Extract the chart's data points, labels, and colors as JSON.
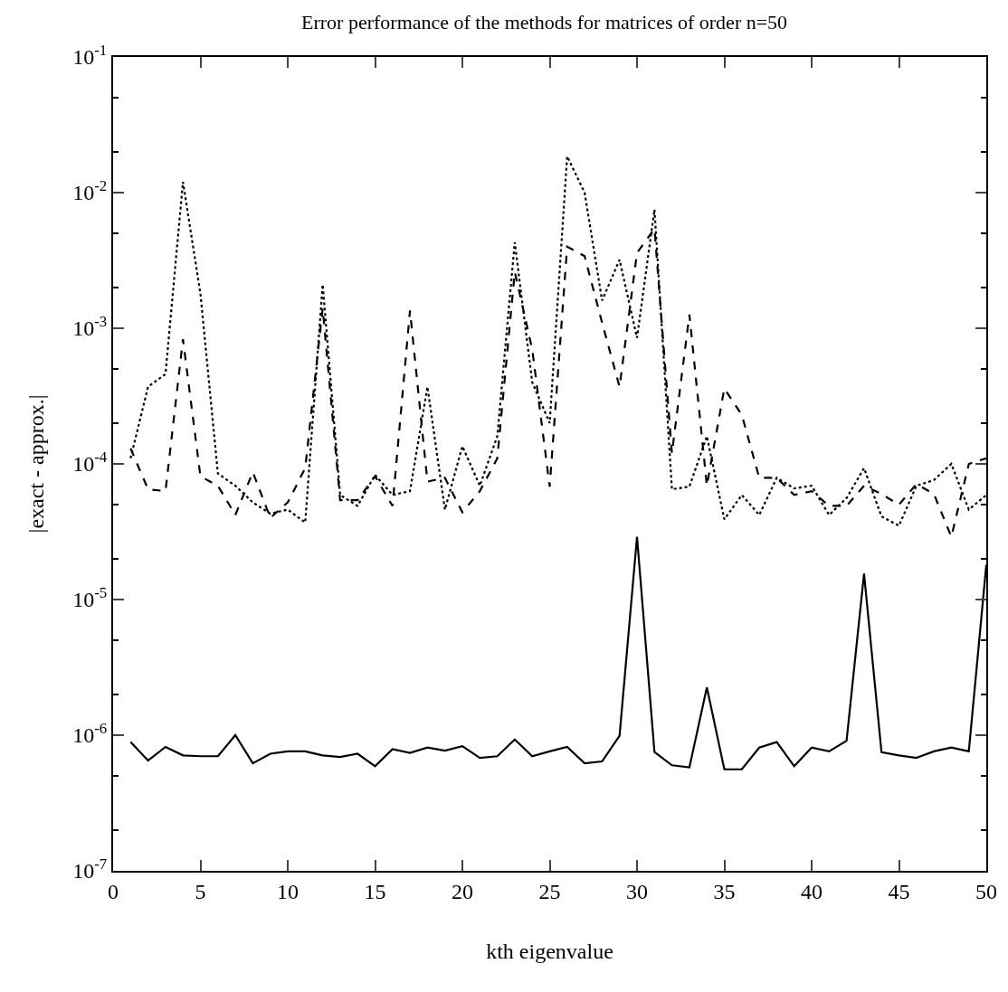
{
  "chart_data": {
    "type": "line",
    "title": "Error performance of the methods for matrices of order n=50",
    "xlabel": "kth eigenvalue",
    "ylabel": "|exact - approx.|",
    "log": "y",
    "x": [
      1,
      2,
      3,
      4,
      5,
      6,
      7,
      8,
      9,
      10,
      11,
      12,
      13,
      14,
      15,
      16,
      17,
      18,
      19,
      20,
      21,
      22,
      23,
      24,
      25,
      26,
      27,
      28,
      29,
      30,
      31,
      32,
      33,
      34,
      35,
      36,
      37,
      38,
      39,
      40,
      41,
      42,
      43,
      44,
      45,
      46,
      47,
      48,
      49,
      50
    ],
    "xlim": [
      0,
      50
    ],
    "xticks": [
      0,
      5,
      10,
      15,
      20,
      25,
      30,
      35,
      40,
      45,
      50
    ],
    "ylim": [
      1e-07,
      0.1
    ],
    "yticks": [
      {
        "value": 1e-07,
        "label": "10$^{-7}$"
      },
      {
        "value": 1e-06,
        "label": "10$^{-6}$"
      },
      {
        "value": 1e-05,
        "label": "10$^{-5}$"
      },
      {
        "value": 0.0001,
        "label": "10$^{-4}$"
      },
      {
        "value": 0.001,
        "label": "10$^{-3}$"
      },
      {
        "value": 0.01,
        "label": "10$^{-2}$"
      },
      {
        "value": 0.1,
        "label": "10$^{-1}$"
      }
    ],
    "grid": false,
    "series": [
      {
        "color": "#000000",
        "line_style": "dotted",
        "values": [
          0.00011,
          0.00037,
          0.00046,
          0.012,
          0.0018,
          8.5e-05,
          6.9e-05,
          5.2e-05,
          4.3e-05,
          4.6e-05,
          3.7e-05,
          0.0021,
          5.9e-05,
          4.9e-05,
          8.3e-05,
          5.9e-05,
          6.3e-05,
          0.00037,
          4.6e-05,
          0.000135,
          6.9e-05,
          0.00016,
          0.0043,
          0.0004,
          0.0002,
          0.0185,
          0.01,
          0.0016,
          0.0032,
          0.00085,
          0.0075,
          6.5e-05,
          6.8e-05,
          0.00016,
          3.9e-05,
          5.9e-05,
          4.2e-05,
          7.9e-05,
          6.6e-05,
          6.9e-05,
          4.2e-05,
          5.6e-05,
          9.3e-05,
          4.1e-05,
          3.5e-05,
          6.9e-05,
          7.6e-05,
          0.0001,
          4.6e-05,
          5.9e-05
        ]
      },
      {
        "color": "#000000",
        "line_style": "dashed",
        "values": [
          0.00013,
          6.5e-05,
          6.3e-05,
          0.00083,
          8.1e-05,
          6.9e-05,
          4.2e-05,
          8.7e-05,
          4e-05,
          5.2e-05,
          9.3e-05,
          0.0014,
          5.4e-05,
          5.4e-05,
          8.1e-05,
          4.9e-05,
          0.00135,
          7.4e-05,
          7.9e-05,
          4.4e-05,
          6.3e-05,
          0.00011,
          0.0026,
          0.0007,
          6.8e-05,
          0.004,
          0.0034,
          0.0011,
          0.00037,
          0.0036,
          0.0054,
          0.00012,
          0.00126,
          6.9e-05,
          0.00036,
          0.00023,
          7.9e-05,
          7.9e-05,
          5.9e-05,
          6.3e-05,
          4.9e-05,
          4.9e-05,
          6.9e-05,
          6e-05,
          5e-05,
          7.1e-05,
          6e-05,
          2.9e-05,
          0.0001,
          0.00011
        ]
      },
      {
        "color": "#000000",
        "line_style": "solid",
        "values": [
          8.9e-07,
          6.5e-07,
          8.2e-07,
          7.1e-07,
          7e-07,
          7e-07,
          1e-06,
          6.2e-07,
          7.3e-07,
          7.6e-07,
          7.6e-07,
          7.1e-07,
          6.9e-07,
          7.3e-07,
          5.9e-07,
          7.9e-07,
          7.4e-07,
          8.1e-07,
          7.7e-07,
          8.3e-07,
          6.8e-07,
          7e-07,
          9.3e-07,
          7e-07,
          7.6e-07,
          8.2e-07,
          6.2e-07,
          6.4e-07,
          9.9e-07,
          2.9e-05,
          7.5e-07,
          6e-07,
          5.8e-07,
          2.25e-06,
          5.6e-07,
          5.6e-07,
          8.1e-07,
          8.9e-07,
          5.9e-07,
          8.1e-07,
          7.6e-07,
          9.1e-07,
          1.55e-05,
          7.5e-07,
          7.1e-07,
          6.8e-07,
          7.6e-07,
          8.1e-07,
          7.6e-07,
          1.8e-05
        ]
      }
    ]
  }
}
